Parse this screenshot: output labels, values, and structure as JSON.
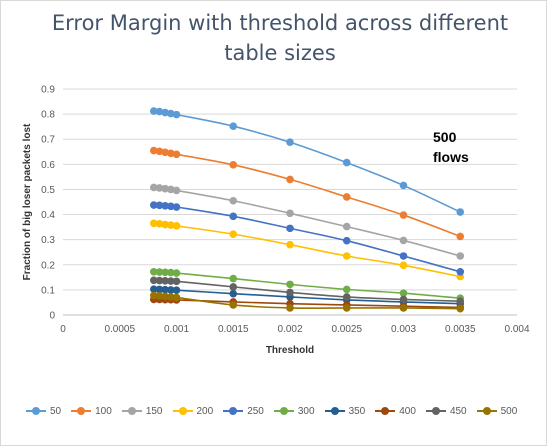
{
  "chart_data": {
    "type": "line",
    "title": "Error Margin with threshold across different table sizes",
    "annotation": "500 flows",
    "xlabel": "Threshold",
    "ylabel": "Fraction of big loser packets lost",
    "xlim": [
      0,
      0.004
    ],
    "ylim": [
      0,
      0.9
    ],
    "xticks": [
      "0",
      "0.0005",
      "0.001",
      "0.0015",
      "0.002",
      "0.0025",
      "0.003",
      "0.0035",
      "0.004"
    ],
    "yticks": [
      "0",
      "0.1",
      "0.2",
      "0.3",
      "0.4",
      "0.5",
      "0.6",
      "0.7",
      "0.8",
      "0.9"
    ],
    "grid": "horizontal",
    "legend_position": "bottom",
    "x": [
      0.0008,
      0.00085,
      0.0009,
      0.00095,
      0.001,
      0.0015,
      0.002,
      0.0025,
      0.003,
      0.0035
    ],
    "series": [
      {
        "name": "50",
        "color": "#5b9bd5",
        "values": [
          0.812,
          0.81,
          0.806,
          0.802,
          0.798,
          0.752,
          0.688,
          0.607,
          0.516,
          0.41
        ]
      },
      {
        "name": "100",
        "color": "#ed7d31",
        "values": [
          0.655,
          0.652,
          0.648,
          0.644,
          0.64,
          0.598,
          0.54,
          0.47,
          0.398,
          0.313
        ]
      },
      {
        "name": "150",
        "color": "#a5a5a5",
        "values": [
          0.508,
          0.506,
          0.503,
          0.5,
          0.496,
          0.455,
          0.405,
          0.352,
          0.297,
          0.235
        ]
      },
      {
        "name": "200",
        "color": "#ffc000",
        "values": [
          0.365,
          0.363,
          0.36,
          0.358,
          0.355,
          0.322,
          0.28,
          0.235,
          0.198,
          0.153
        ]
      },
      {
        "name": "250",
        "color": "#4472c4",
        "values": [
          0.438,
          0.437,
          0.435,
          0.433,
          0.43,
          0.393,
          0.345,
          0.296,
          0.235,
          0.172
        ]
      },
      {
        "name": "300",
        "color": "#70ad47",
        "values": [
          0.172,
          0.171,
          0.17,
          0.169,
          0.167,
          0.145,
          0.122,
          0.102,
          0.087,
          0.067
        ]
      },
      {
        "name": "350",
        "color": "#255e91",
        "values": [
          0.103,
          0.102,
          0.101,
          0.1,
          0.099,
          0.085,
          0.072,
          0.06,
          0.052,
          0.045
        ]
      },
      {
        "name": "400",
        "color": "#9e480e",
        "values": [
          0.062,
          0.062,
          0.061,
          0.061,
          0.06,
          0.052,
          0.045,
          0.04,
          0.035,
          0.03
        ]
      },
      {
        "name": "450",
        "color": "#636363",
        "values": [
          0.138,
          0.137,
          0.136,
          0.135,
          0.134,
          0.112,
          0.09,
          0.072,
          0.062,
          0.055
        ]
      },
      {
        "name": "500",
        "color": "#997300",
        "values": [
          0.078,
          0.076,
          0.074,
          0.072,
          0.07,
          0.04,
          0.028,
          0.028,
          0.028,
          0.025
        ]
      }
    ]
  }
}
